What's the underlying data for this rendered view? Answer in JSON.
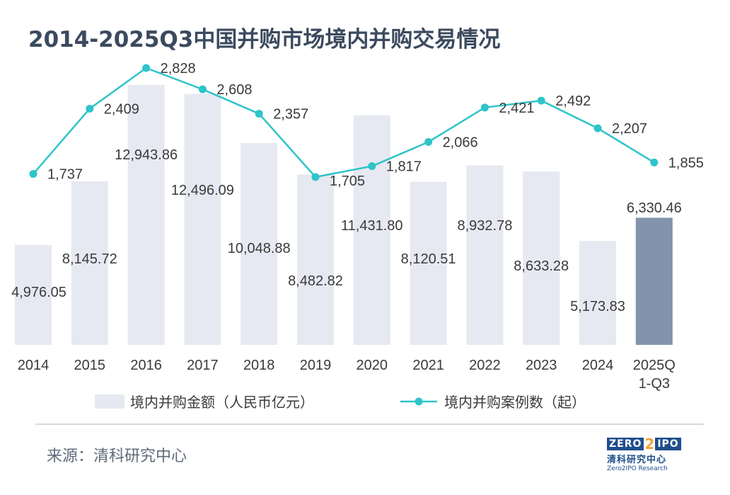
{
  "title": "2014-2025Q3中国并购市场境内并购交易情况",
  "source": "来源：清科研究中心",
  "logo": {
    "brand_left": "ZERO",
    "brand_mid": "2",
    "brand_right": "IPO",
    "cn": "清科研究中心",
    "en": "Zero2IPO Research"
  },
  "colors": {
    "bar": "#e6e9f1",
    "bar_highlight": "#8293ab",
    "line": "#2ec4c9",
    "text": "#333333",
    "title": "#3b4a5e"
  },
  "chart_data": {
    "type": "bar",
    "categories": [
      "2014",
      "2015",
      "2016",
      "2017",
      "2018",
      "2019",
      "2020",
      "2021",
      "2022",
      "2023",
      "2024",
      "2025Q\n1-Q3"
    ],
    "category_lines": [
      [
        "2014"
      ],
      [
        "2015"
      ],
      [
        "2016"
      ],
      [
        "2017"
      ],
      [
        "2018"
      ],
      [
        "2019"
      ],
      [
        "2020"
      ],
      [
        "2021"
      ],
      [
        "2022"
      ],
      [
        "2023"
      ],
      [
        "2024"
      ],
      [
        "2025Q",
        "1-Q3"
      ]
    ],
    "series": [
      {
        "name": "境内并购金额（人民币亿元）",
        "type": "bar",
        "axis": "left",
        "values": [
          4976.05,
          8145.72,
          12943.86,
          12496.09,
          10048.88,
          8482.82,
          11431.8,
          8120.51,
          8932.78,
          8633.28,
          5173.83,
          6330.46
        ],
        "labels": [
          "4,976.05",
          "8,145.72",
          "12,943.86",
          "12,496.09",
          "10,048.88",
          "8,482.82",
          "11,431.80",
          "8,120.51",
          "8,932.78",
          "8,633.28",
          "5,173.83",
          "6,330.46"
        ]
      },
      {
        "name": "境内并购案例数（起）",
        "type": "line",
        "axis": "right",
        "values": [
          1737,
          2409,
          2828,
          2608,
          2357,
          1705,
          1817,
          2066,
          2421,
          2492,
          2207,
          1855
        ],
        "labels": [
          "1,737",
          "2,409",
          "2,828",
          "2,608",
          "2,357",
          "1,705",
          "1,817",
          "2,066",
          "2,421",
          "2,492",
          "2,207",
          "1,855"
        ]
      }
    ],
    "left_axis_range": [
      0,
      14000
    ],
    "right_axis_range": [
      0,
      2800
    ],
    "legend_position": "bottom",
    "grid": false,
    "highlight_index": 11
  }
}
